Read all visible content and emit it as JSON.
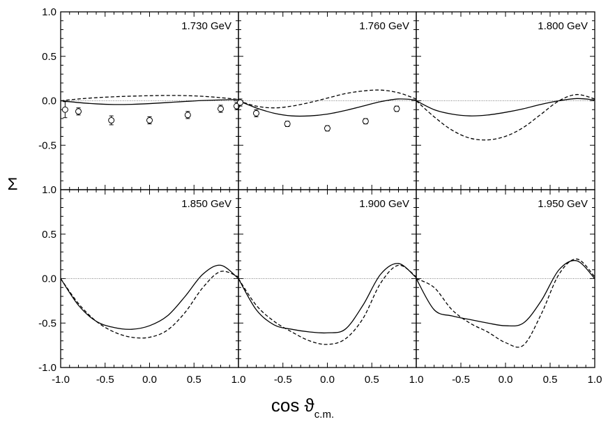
{
  "chart_data": {
    "type": "line",
    "layout": "2x3 panel grid",
    "xlabel": "cos ϑ",
    "xlabel_sub": "c.m.",
    "ylabel": "Σ",
    "xlim": [
      -1.0,
      1.0
    ],
    "ylim": [
      -1.0,
      1.0
    ],
    "x_ticks": [
      -1.0,
      -0.5,
      0.0,
      0.5,
      1.0
    ],
    "x_tick_labels": [
      "-1.0",
      "-0.5",
      "0.0",
      "0.5",
      "1.0"
    ],
    "y_ticks": [
      -1.0,
      -0.5,
      0.0,
      0.5,
      1.0
    ],
    "y_tick_labels": [
      "-1.0",
      "-0.5",
      "0.0",
      "0.5",
      "1.0"
    ],
    "reference_line": 0.0,
    "series_styles": {
      "solid": "solid black line",
      "dashed": "dashed black line",
      "data": "open circles with error bars"
    },
    "panels": [
      {
        "label": "1.730 GeV",
        "solid": {
          "x": [
            -1.0,
            -0.8,
            -0.6,
            -0.4,
            -0.2,
            0.0,
            0.2,
            0.4,
            0.6,
            0.8,
            1.0
          ],
          "y": [
            0.0,
            -0.02,
            -0.035,
            -0.042,
            -0.04,
            -0.032,
            -0.02,
            -0.008,
            0.003,
            0.01,
            0.015
          ]
        },
        "dashed": {
          "x": [
            -1.0,
            -0.8,
            -0.6,
            -0.4,
            -0.2,
            0.0,
            0.2,
            0.4,
            0.6,
            0.8,
            1.0
          ],
          "y": [
            0.0,
            0.02,
            0.035,
            0.045,
            0.052,
            0.057,
            0.06,
            0.058,
            0.05,
            0.035,
            0.015
          ]
        },
        "data": {
          "x": [
            -0.95,
            -0.8,
            -0.43,
            0.0,
            0.43,
            0.8,
            0.98
          ],
          "y": [
            -0.1,
            -0.12,
            -0.22,
            -0.22,
            -0.16,
            -0.09,
            -0.06
          ],
          "err": [
            0.09,
            0.04,
            0.05,
            0.04,
            0.04,
            0.04,
            0.04
          ]
        }
      },
      {
        "label": "1.760 GeV",
        "solid": {
          "x": [
            -1.0,
            -0.8,
            -0.6,
            -0.4,
            -0.2,
            0.0,
            0.2,
            0.4,
            0.6,
            0.8,
            1.0
          ],
          "y": [
            0.0,
            -0.08,
            -0.14,
            -0.17,
            -0.17,
            -0.15,
            -0.11,
            -0.06,
            -0.01,
            0.02,
            0.01
          ]
        },
        "dashed": {
          "x": [
            -1.0,
            -0.8,
            -0.6,
            -0.4,
            -0.2,
            0.0,
            0.2,
            0.4,
            0.6,
            0.8,
            1.0
          ],
          "y": [
            0.0,
            -0.06,
            -0.08,
            -0.06,
            -0.02,
            0.03,
            0.08,
            0.11,
            0.12,
            0.09,
            0.02
          ]
        },
        "data": {
          "x": [
            -0.98,
            -0.8,
            -0.45,
            0.0,
            0.43,
            0.78
          ],
          "y": [
            -0.02,
            -0.14,
            -0.26,
            -0.31,
            -0.23,
            -0.09
          ],
          "err": [
            0.04,
            0.04,
            0.03,
            0.03,
            0.03,
            0.03
          ]
        }
      },
      {
        "label": "1.800 GeV",
        "solid": {
          "x": [
            -1.0,
            -0.8,
            -0.6,
            -0.4,
            -0.2,
            0.0,
            0.2,
            0.4,
            0.6,
            0.8,
            1.0
          ],
          "y": [
            0.0,
            -0.1,
            -0.15,
            -0.17,
            -0.16,
            -0.13,
            -0.09,
            -0.04,
            0.0,
            0.025,
            0.01
          ]
        },
        "dashed": {
          "x": [
            -1.0,
            -0.8,
            -0.6,
            -0.4,
            -0.2,
            0.0,
            0.2,
            0.4,
            0.6,
            0.8,
            1.0
          ],
          "y": [
            0.0,
            -0.18,
            -0.33,
            -0.42,
            -0.44,
            -0.4,
            -0.3,
            -0.15,
            0.0,
            0.07,
            0.02
          ]
        }
      },
      {
        "label": "1.850 GeV",
        "solid": {
          "x": [
            -1.0,
            -0.8,
            -0.6,
            -0.4,
            -0.2,
            0.0,
            0.2,
            0.4,
            0.6,
            0.8,
            1.0
          ],
          "y": [
            0.0,
            -0.3,
            -0.48,
            -0.55,
            -0.57,
            -0.53,
            -0.42,
            -0.2,
            0.05,
            0.15,
            0.0
          ]
        },
        "dashed": {
          "x": [
            -1.0,
            -0.8,
            -0.6,
            -0.4,
            -0.2,
            0.0,
            0.2,
            0.4,
            0.6,
            0.8,
            1.0
          ],
          "y": [
            0.0,
            -0.28,
            -0.48,
            -0.6,
            -0.66,
            -0.66,
            -0.58,
            -0.38,
            -0.1,
            0.08,
            0.02
          ]
        }
      },
      {
        "label": "1.900 GeV",
        "solid": {
          "x": [
            -1.0,
            -0.8,
            -0.6,
            -0.4,
            -0.2,
            0.0,
            0.2,
            0.4,
            0.6,
            0.8,
            1.0
          ],
          "y": [
            0.0,
            -0.35,
            -0.52,
            -0.57,
            -0.6,
            -0.61,
            -0.57,
            -0.3,
            0.05,
            0.17,
            0.01
          ]
        },
        "dashed": {
          "x": [
            -1.0,
            -0.8,
            -0.6,
            -0.4,
            -0.2,
            0.0,
            0.2,
            0.4,
            0.6,
            0.8,
            1.0
          ],
          "y": [
            0.0,
            -0.3,
            -0.48,
            -0.6,
            -0.7,
            -0.74,
            -0.68,
            -0.45,
            -0.05,
            0.15,
            0.02
          ]
        }
      },
      {
        "label": "1.950 GeV",
        "solid": {
          "x": [
            -1.0,
            -0.8,
            -0.6,
            -0.4,
            -0.2,
            0.0,
            0.2,
            0.4,
            0.6,
            0.8,
            1.0
          ],
          "y": [
            0.0,
            -0.35,
            -0.42,
            -0.46,
            -0.5,
            -0.53,
            -0.5,
            -0.25,
            0.1,
            0.2,
            0.0
          ]
        },
        "dashed": {
          "x": [
            -1.0,
            -0.8,
            -0.6,
            -0.4,
            -0.2,
            0.0,
            0.2,
            0.4,
            0.6,
            0.8,
            1.0
          ],
          "y": [
            0.0,
            -0.1,
            -0.35,
            -0.5,
            -0.6,
            -0.72,
            -0.75,
            -0.4,
            0.05,
            0.22,
            0.02
          ]
        }
      }
    ]
  }
}
